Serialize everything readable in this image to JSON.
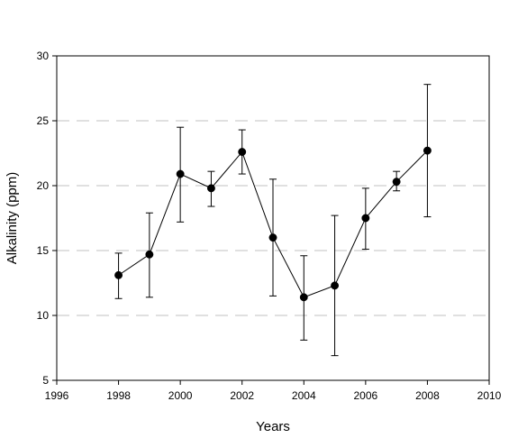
{
  "chart_data": {
    "type": "line",
    "title": "",
    "xlabel": "Years",
    "ylabel": "Alkalinity (ppm)",
    "xlim": [
      1996,
      2010
    ],
    "ylim": [
      5,
      30
    ],
    "xticks": [
      1996,
      1998,
      2000,
      2002,
      2004,
      2006,
      2008,
      2010
    ],
    "yticks": [
      5,
      10,
      15,
      20,
      25,
      30
    ],
    "grid": "horizontal dashed at 10, 15, 20, 25",
    "legend": "none",
    "series": [
      {
        "x": [
          1998,
          1999,
          2000,
          2001,
          2002,
          2003,
          2004,
          2005,
          2006,
          2007,
          2008
        ],
        "y": [
          13.1,
          14.7,
          20.9,
          19.8,
          22.6,
          16.0,
          11.4,
          12.3,
          17.5,
          20.3,
          22.7
        ],
        "err_low": [
          11.3,
          11.4,
          17.2,
          18.4,
          20.9,
          11.5,
          8.1,
          6.9,
          15.1,
          19.6,
          17.6
        ],
        "err_high": [
          14.8,
          17.9,
          24.5,
          21.1,
          24.3,
          20.5,
          14.6,
          17.7,
          19.8,
          21.1,
          27.8
        ]
      }
    ],
    "colors": {
      "line": "#000000",
      "marker": "#000000",
      "grid": "#c0c0c0"
    }
  }
}
